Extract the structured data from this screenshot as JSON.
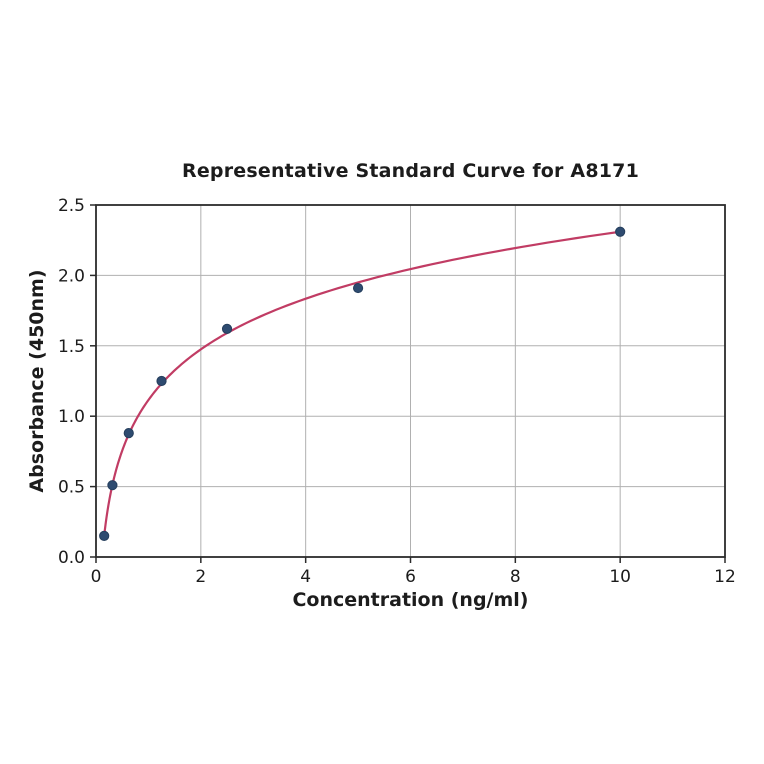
{
  "chart_data": {
    "type": "scatter",
    "title": "Representative Standard Curve for A8171",
    "xlabel": "Concentration (ng/ml)",
    "ylabel": "Absorbance (450nm)",
    "x": [
      0.156,
      0.313,
      0.625,
      1.25,
      2.5,
      5,
      10
    ],
    "y": [
      0.15,
      0.51,
      0.88,
      1.25,
      1.62,
      1.91,
      2.31
    ],
    "xlim": [
      0,
      12
    ],
    "ylim": [
      0,
      2.5
    ],
    "xticks": [
      0,
      2,
      4,
      6,
      8,
      10,
      12
    ],
    "yticks": [
      0,
      0.5,
      1,
      1.5,
      2,
      2.5
    ],
    "xtick_labels": [
      "0",
      "2",
      "4",
      "6",
      "8",
      "10",
      "12"
    ],
    "ytick_labels": [
      "0.0",
      "0.5",
      "1.0",
      "1.5",
      "2.0",
      "2.5"
    ],
    "grid": true,
    "legend": "none",
    "fit_curve": {
      "type": "logarithmic",
      "equation": "y = 1.115 + 0.519*ln(x)",
      "a": 1.115,
      "b": 0.519,
      "x_start": 0.156,
      "x_end": 10
    },
    "colors": {
      "curve": "#c13c64",
      "marker": "#2e4b70",
      "marker_edge": "#253e5c",
      "grid": "#b0b0b0",
      "axis": "#2b2b2b",
      "text": "#1c1c1c"
    }
  }
}
